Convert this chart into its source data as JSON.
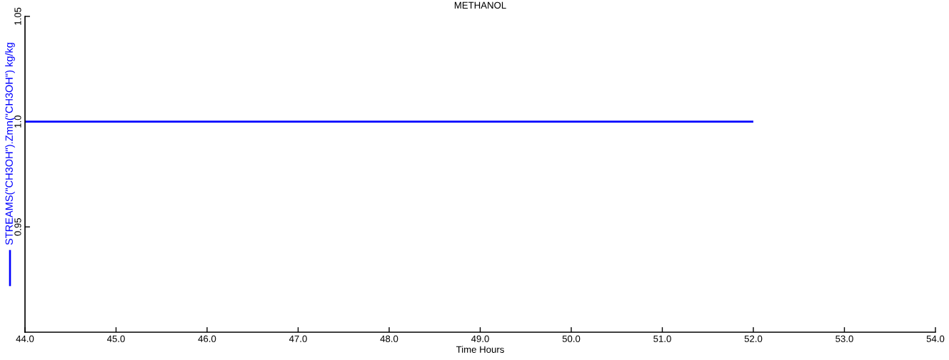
{
  "chart_data": {
    "type": "line",
    "title": "METHANOL",
    "xlabel": "Time Hours",
    "x": [
      44.0,
      52.0
    ],
    "series": [
      {
        "name": "STREAMS(\"CH3OH\").Zmn(\"CH3OH\") kg/kg",
        "color": "#0000ff",
        "values": [
          1.0,
          1.0
        ]
      }
    ],
    "xlim": [
      44,
      54
    ],
    "xticks": [
      {
        "value": 44,
        "label": "44.0"
      },
      {
        "value": 45,
        "label": "45.0"
      },
      {
        "value": 46,
        "label": "46.0"
      },
      {
        "value": 47,
        "label": "47.0"
      },
      {
        "value": 48,
        "label": "48.0"
      },
      {
        "value": 49,
        "label": "49.0"
      },
      {
        "value": 50,
        "label": "50.0"
      },
      {
        "value": 51,
        "label": "51.0"
      },
      {
        "value": 52,
        "label": "52.0"
      },
      {
        "value": 53,
        "label": "53.0"
      },
      {
        "value": 54,
        "label": "54.0"
      }
    ],
    "ylim": [
      0.9,
      1.05
    ],
    "yticks": [
      {
        "value": 0.95,
        "label": "0.95"
      },
      {
        "value": 1.0,
        "label": "1.0"
      },
      {
        "value": 1.05,
        "label": "1.05"
      }
    ],
    "grid": false,
    "legend": "left",
    "line_style": "solid"
  }
}
